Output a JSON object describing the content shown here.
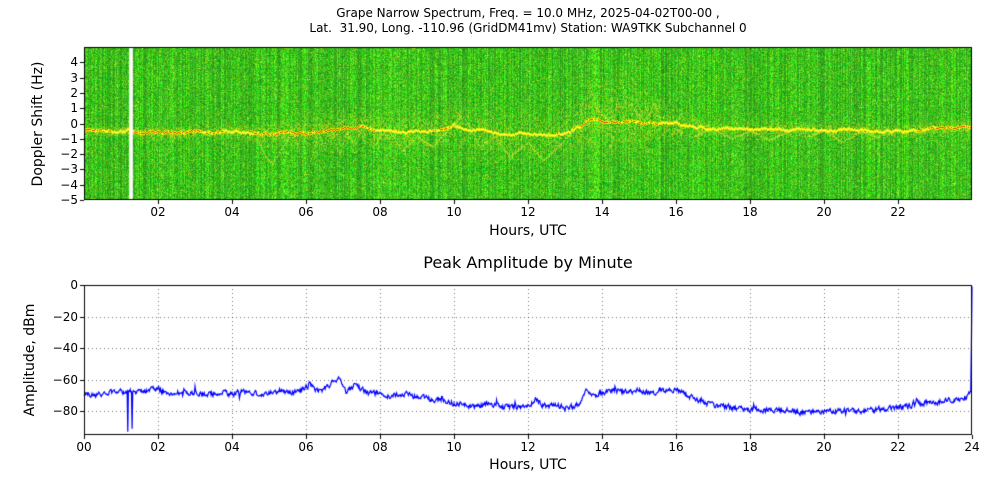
{
  "chart_data": [
    {
      "type": "heatmap",
      "title_line1": "Grape Narrow Spectrum, Freq. = 10.0 MHz, 2025-04-02T00-00 ,",
      "title_line2": "Lat.  31.90, Long. -110.96 (GridDM41mv) Station: WA9TKK Subchannel 0",
      "xlabel": "Hours, UTC",
      "ylabel": "Doppler Shift (Hz)",
      "xlim": [
        0,
        24
      ],
      "ylim": [
        -5,
        5
      ],
      "x_ticks": [
        {
          "v": 2,
          "label": "02"
        },
        {
          "v": 4,
          "label": "04"
        },
        {
          "v": 6,
          "label": "06"
        },
        {
          "v": 8,
          "label": "08"
        },
        {
          "v": 10,
          "label": "10"
        },
        {
          "v": 12,
          "label": "12"
        },
        {
          "v": 14,
          "label": "14"
        },
        {
          "v": 16,
          "label": "16"
        },
        {
          "v": 18,
          "label": "18"
        },
        {
          "v": 20,
          "label": "20"
        },
        {
          "v": 22,
          "label": "22"
        }
      ],
      "y_ticks": [
        {
          "v": 4,
          "label": "4"
        },
        {
          "v": 3,
          "label": "3"
        },
        {
          "v": 2,
          "label": "2"
        },
        {
          "v": 1,
          "label": "1"
        },
        {
          "v": 0,
          "label": "0"
        },
        {
          "v": -1,
          "label": "−1"
        },
        {
          "v": -2,
          "label": "−2"
        },
        {
          "v": -3,
          "label": "−3"
        },
        {
          "v": -4,
          "label": "−4"
        },
        {
          "v": -5,
          "label": "−5"
        }
      ],
      "colors": {
        "noise_green": "#2e9e20",
        "trace_yellow": "#ffe000",
        "trace_hot": "#e03400",
        "gap_white": "#ffffff"
      },
      "gap_hours": [
        1.22,
        1.32
      ],
      "trace": {
        "x": [
          0,
          0.5,
          1,
          1.5,
          2,
          2.5,
          3,
          3.5,
          4,
          4.5,
          5,
          5.5,
          6,
          6.5,
          7,
          7.5,
          8,
          8.5,
          9,
          9.5,
          10,
          10.5,
          11,
          11.5,
          12,
          12.5,
          13,
          13.4,
          13.6,
          14,
          14.5,
          15,
          15.5,
          16,
          16.5,
          17,
          18,
          19,
          20,
          21,
          22,
          23,
          24
        ],
        "y": [
          -0.4,
          -0.5,
          -0.45,
          -0.5,
          -0.5,
          -0.6,
          -0.5,
          -0.55,
          -0.5,
          -0.6,
          -0.7,
          -0.5,
          -0.6,
          -0.5,
          -0.3,
          -0.2,
          -0.4,
          -0.6,
          -0.5,
          -0.4,
          -0.1,
          -0.4,
          -0.5,
          -0.7,
          -0.6,
          -0.8,
          -0.6,
          -0.2,
          0.3,
          0.2,
          0.1,
          0.1,
          0.0,
          0.0,
          -0.2,
          -0.3,
          -0.3,
          -0.4,
          -0.4,
          -0.4,
          -0.5,
          -0.3,
          -0.2
        ]
      },
      "spread": {
        "x": [
          0,
          1,
          2,
          3,
          4,
          5,
          6,
          7,
          8,
          9,
          10,
          11,
          12,
          13,
          13.5,
          14,
          14.5,
          15,
          16,
          16.5,
          17,
          18,
          19,
          20,
          21,
          22,
          23,
          24
        ],
        "s": [
          0.25,
          0.25,
          0.35,
          0.3,
          0.35,
          0.6,
          0.8,
          0.8,
          0.9,
          1.0,
          1.1,
          1.2,
          1.2,
          1.0,
          1.5,
          1.8,
          1.8,
          1.5,
          0.8,
          0.5,
          0.45,
          0.5,
          0.45,
          0.4,
          0.45,
          0.4,
          0.35,
          0.35
        ]
      },
      "intensity": {
        "x": [
          0,
          0.5,
          1,
          2,
          2.5,
          3,
          4,
          5,
          5.5,
          6,
          6.5,
          7,
          7.5,
          8,
          9,
          9.8,
          10,
          10.5,
          11,
          13,
          13.5,
          14,
          15,
          16,
          17,
          20,
          22,
          23,
          24
        ],
        "i": [
          0.8,
          0.6,
          0.5,
          0.9,
          0.9,
          0.7,
          0.5,
          0.6,
          0.8,
          0.9,
          0.8,
          0.9,
          0.7,
          0.5,
          0.4,
          0.7,
          0.5,
          0.3,
          0.3,
          0.3,
          0.6,
          0.7,
          0.6,
          0.5,
          0.4,
          0.3,
          0.5,
          0.6,
          0.7
        ]
      },
      "branches": [
        {
          "x": [
            1.8,
            2.0,
            2.1,
            2.2,
            2.45
          ],
          "y": [
            -0.6,
            -2.0,
            -3.6,
            -2.0,
            -0.8
          ]
        },
        {
          "x": [
            4.6,
            4.9,
            5.1,
            5.3,
            5.6
          ],
          "y": [
            -0.5,
            -2.2,
            -2.6,
            -1.8,
            -0.6
          ]
        },
        {
          "x": [
            5.7,
            5.9,
            6.0,
            6.1,
            6.3
          ],
          "y": [
            -0.8,
            -2.5,
            -4.2,
            -2.5,
            -1.0
          ]
        },
        {
          "x": [
            6.3,
            6.5,
            6.7,
            6.9,
            7.1,
            7.3,
            7.5
          ],
          "y": [
            -0.3,
            -1.8,
            -0.4,
            -2.0,
            -0.5,
            -1.5,
            -0.3
          ]
        },
        {
          "x": [
            7.8,
            8.2,
            8.6,
            9.0,
            9.4,
            9.8,
            10.2
          ],
          "y": [
            -1.5,
            -0.3,
            -1.8,
            -0.8,
            -1.5,
            -0.5,
            0.5
          ]
        },
        {
          "x": [
            10.3,
            10.7,
            11.1,
            11.5,
            12.0,
            12.4,
            12.8,
            13.2
          ],
          "y": [
            0.3,
            -1.5,
            -0.8,
            -2.2,
            -1.2,
            -2.4,
            -1.5,
            -0.5
          ]
        },
        {
          "x": [
            13.5,
            13.65,
            13.8,
            14.0,
            14.2
          ],
          "y": [
            0.0,
            2.6,
            1.2,
            0.6,
            0.2
          ]
        },
        {
          "x": [
            14.3,
            14.5,
            14.7,
            14.9,
            15.1
          ],
          "y": [
            0.2,
            2.9,
            1.5,
            0.8,
            0.3
          ]
        },
        {
          "x": [
            15.2,
            15.4,
            15.6
          ],
          "y": [
            0.3,
            1.4,
            0.2
          ]
        },
        {
          "x": [
            16.5,
            17.0,
            17.5,
            18.0,
            18.5,
            19.0
          ],
          "y": [
            -0.8,
            -0.3,
            -1.0,
            -0.4,
            -1.1,
            -0.5
          ]
        },
        {
          "x": [
            19.5,
            20.0,
            20.5,
            21.0,
            21.5
          ],
          "y": [
            -0.9,
            -0.4,
            -1.2,
            -0.5,
            -0.9
          ]
        }
      ]
    },
    {
      "type": "line",
      "title": "Peak Amplitude by Minute",
      "xlabel": "Hours, UTC",
      "ylabel": "Amplitude, dBm",
      "xlim": [
        0,
        24
      ],
      "ylim": [
        -95,
        0
      ],
      "grid": true,
      "legend": false,
      "line_color": "#0000ff",
      "x_ticks": [
        {
          "v": 0,
          "label": "00"
        },
        {
          "v": 2,
          "label": "02"
        },
        {
          "v": 4,
          "label": "04"
        },
        {
          "v": 6,
          "label": "06"
        },
        {
          "v": 8,
          "label": "08"
        },
        {
          "v": 10,
          "label": "10"
        },
        {
          "v": 12,
          "label": "12"
        },
        {
          "v": 14,
          "label": "14"
        },
        {
          "v": 16,
          "label": "16"
        },
        {
          "v": 18,
          "label": "18"
        },
        {
          "v": 20,
          "label": "20"
        },
        {
          "v": 22,
          "label": "22"
        },
        {
          "v": 24,
          "label": "24"
        }
      ],
      "y_ticks": [
        {
          "v": 0,
          "label": "0"
        },
        {
          "v": -20,
          "label": "−20"
        },
        {
          "v": -40,
          "label": "−40"
        },
        {
          "v": -60,
          "label": "−60"
        },
        {
          "v": -80,
          "label": "−80"
        }
      ],
      "series": [
        {
          "name": "peak-amplitude-dbm",
          "points": [
            [
              0,
              -68
            ],
            [
              0.3,
              -70
            ],
            [
              0.6,
              -69
            ],
            [
              0.9,
              -67
            ],
            [
              1.1,
              -68
            ],
            [
              1.5,
              -67
            ],
            [
              1.8,
              -66
            ],
            [
              2.0,
              -66
            ],
            [
              2.3,
              -69
            ],
            [
              2.6,
              -68
            ],
            [
              3.0,
              -68
            ],
            [
              3.3,
              -70
            ],
            [
              3.6,
              -68
            ],
            [
              4.0,
              -69
            ],
            [
              4.3,
              -67
            ],
            [
              4.6,
              -69
            ],
            [
              5.0,
              -68
            ],
            [
              5.3,
              -67
            ],
            [
              5.6,
              -68
            ],
            [
              5.9,
              -66
            ],
            [
              6.1,
              -63
            ],
            [
              6.3,
              -67
            ],
            [
              6.5,
              -66
            ],
            [
              6.7,
              -62
            ],
            [
              6.9,
              -60
            ],
            [
              7.1,
              -68
            ],
            [
              7.3,
              -64
            ],
            [
              7.5,
              -66
            ],
            [
              7.7,
              -69
            ],
            [
              8.0,
              -68
            ],
            [
              8.3,
              -71
            ],
            [
              8.6,
              -69
            ],
            [
              9.0,
              -71
            ],
            [
              9.3,
              -72
            ],
            [
              9.6,
              -73
            ],
            [
              10.0,
              -75
            ],
            [
              10.3,
              -76
            ],
            [
              10.6,
              -77
            ],
            [
              11.0,
              -75
            ],
            [
              11.3,
              -77
            ],
            [
              11.6,
              -78
            ],
            [
              12.0,
              -76
            ],
            [
              12.2,
              -73
            ],
            [
              12.5,
              -77
            ],
            [
              12.8,
              -76
            ],
            [
              13.1,
              -78
            ],
            [
              13.4,
              -75
            ],
            [
              13.6,
              -66
            ],
            [
              13.8,
              -70
            ],
            [
              14.0,
              -68
            ],
            [
              14.3,
              -67
            ],
            [
              14.6,
              -68
            ],
            [
              15.0,
              -67
            ],
            [
              15.3,
              -68
            ],
            [
              15.6,
              -67
            ],
            [
              16.0,
              -66
            ],
            [
              16.3,
              -70
            ],
            [
              16.6,
              -73
            ],
            [
              17.0,
              -76
            ],
            [
              17.4,
              -77
            ],
            [
              17.8,
              -79
            ],
            [
              18.2,
              -79
            ],
            [
              18.6,
              -80
            ],
            [
              19.0,
              -79
            ],
            [
              19.4,
              -81
            ],
            [
              19.8,
              -80
            ],
            [
              20.2,
              -80
            ],
            [
              20.6,
              -79
            ],
            [
              21.0,
              -80
            ],
            [
              21.4,
              -79
            ],
            [
              21.8,
              -78
            ],
            [
              22.2,
              -77
            ],
            [
              22.6,
              -75
            ],
            [
              23.0,
              -74
            ],
            [
              23.4,
              -73
            ],
            [
              23.8,
              -71
            ],
            [
              23.97,
              -69
            ],
            [
              24,
              -1
            ]
          ]
        }
      ],
      "dropouts": [
        [
          1.18,
          -93
        ],
        [
          1.3,
          -91
        ]
      ],
      "noise_db": 1.2
    }
  ]
}
